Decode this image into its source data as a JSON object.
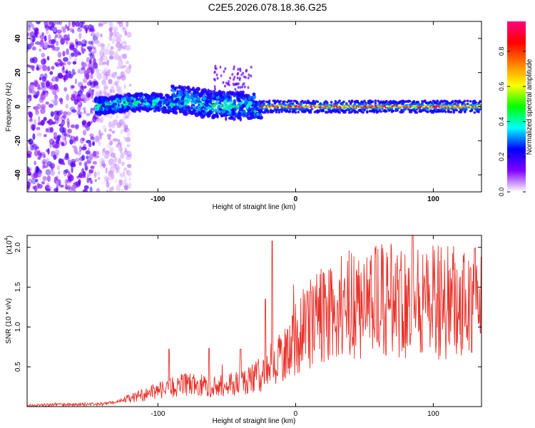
{
  "chart_data": [
    {
      "type": "heatmap",
      "title": "C2E5.2026.078.18.36.G25",
      "xlabel": "Height of straight line (km)",
      "ylabel": "Frequency (Hz)",
      "xlim": [
        -195,
        135
      ],
      "ylim": [
        -50,
        50
      ],
      "xticks": [
        -100,
        0,
        100
      ],
      "yticks": [
        -40,
        -20,
        0,
        20,
        40
      ],
      "colorbar": {
        "label": "Normalized spectral amplitude",
        "range": [
          0,
          0.97
        ],
        "ticks": [
          0.0,
          0.2,
          0.4,
          0.6,
          0.8
        ],
        "tick_labels": [
          "0.0",
          "0.2",
          "0.4",
          "0.6",
          "0.8"
        ],
        "colors": [
          "#ffffff",
          "#8000ff",
          "#0000ff",
          "#00ffff",
          "#00ff00",
          "#ffff00",
          "#ff8000",
          "#ff0000",
          "#ff0080"
        ]
      },
      "description_zones": [
        {
          "x_range": [
            -195,
            -145
          ],
          "pattern": "scattered noise across all frequencies"
        },
        {
          "x_range": [
            -145,
            -25
          ],
          "pattern": "signal band near 0 Hz with spread up to about 10 Hz"
        },
        {
          "x_range": [
            -25,
            135
          ],
          "pattern": "strong narrow band at 0 Hz"
        }
      ]
    },
    {
      "type": "line",
      "xlabel": "Height of straight line (km)",
      "ylabel": "SNR (10 * v/v)",
      "y_scale_label": "(x10",
      "y_scale_exp": "4",
      "y_scale_close": ")",
      "xlim": [
        -195,
        135
      ],
      "ylim": [
        0,
        2.15
      ],
      "xticks": [
        -100,
        0,
        100
      ],
      "yticks": [
        0.5,
        1.0,
        1.5,
        2.0
      ],
      "ytick_labels": [
        "0.5",
        "1.0",
        "1.5",
        "2.0"
      ],
      "series_color": "#e8322a",
      "envelope": [
        {
          "x": -195,
          "y": 0.02
        },
        {
          "x": -140,
          "y": 0.03
        },
        {
          "x": -125,
          "y": 0.08
        },
        {
          "x": -100,
          "y": 0.2
        },
        {
          "x": -80,
          "y": 0.28
        },
        {
          "x": -60,
          "y": 0.25
        },
        {
          "x": -40,
          "y": 0.3
        },
        {
          "x": -25,
          "y": 0.4
        },
        {
          "x": -10,
          "y": 0.65
        },
        {
          "x": 0,
          "y": 0.85
        },
        {
          "x": 10,
          "y": 1.05
        },
        {
          "x": 25,
          "y": 1.2
        },
        {
          "x": 45,
          "y": 1.3
        },
        {
          "x": 80,
          "y": 1.35
        },
        {
          "x": 110,
          "y": 1.3
        },
        {
          "x": 135,
          "y": 1.32
        }
      ],
      "peaks": [
        {
          "x": -92,
          "y": 0.72
        },
        {
          "x": -63,
          "y": 0.73
        },
        {
          "x": -40,
          "y": 0.72
        },
        {
          "x": -22,
          "y": 1.35
        },
        {
          "x": -17,
          "y": 2.08
        },
        {
          "x": 85,
          "y": 2.15
        },
        {
          "x": 130,
          "y": 1.98
        }
      ]
    }
  ]
}
